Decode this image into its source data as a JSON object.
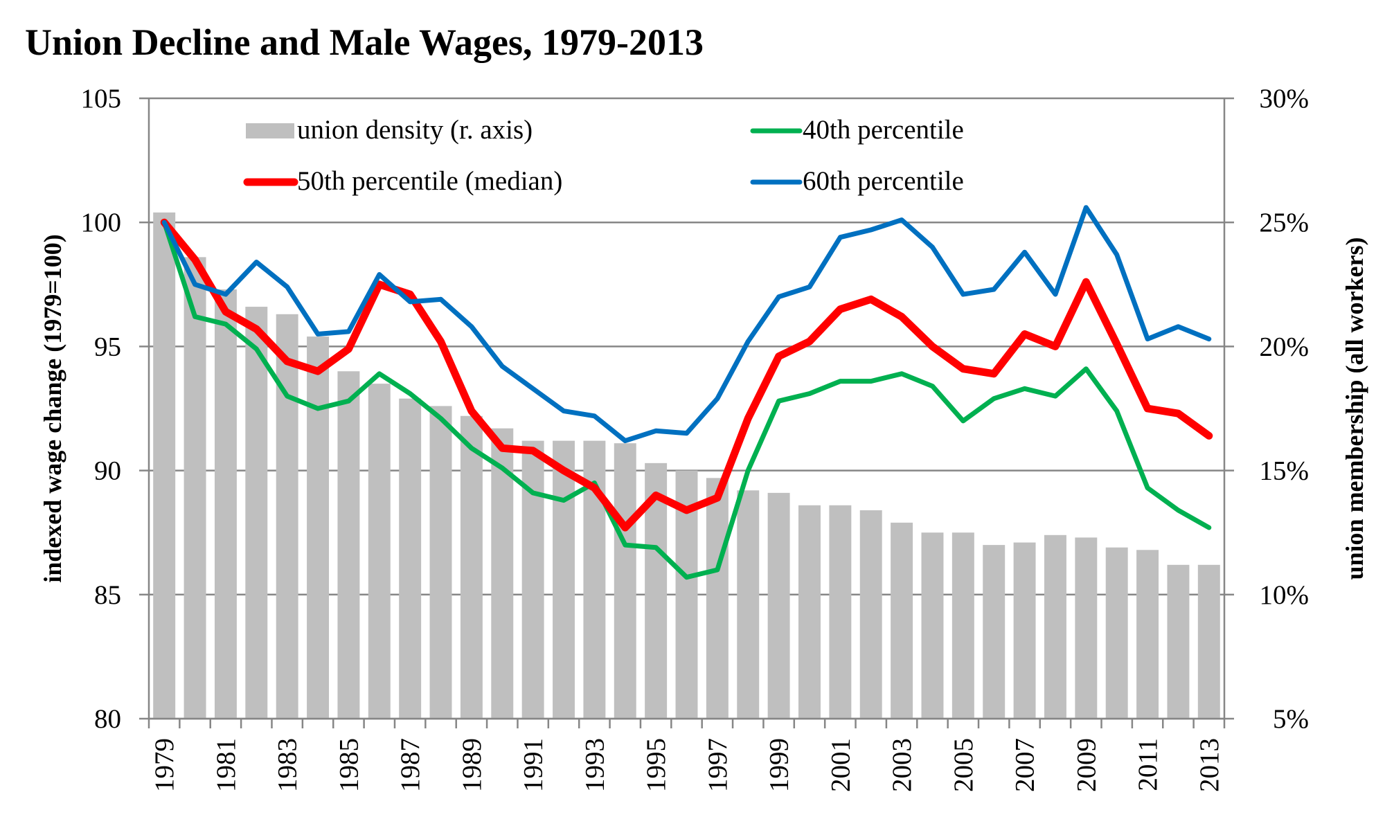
{
  "chart_data": {
    "type": "bar+line",
    "title": "Union Decline and Male Wages, 1979-2013",
    "xlabel": "",
    "ylabel": "indexed wage change (1979=100)",
    "y2label": "union membership (all workers)",
    "ylim": [
      80,
      105
    ],
    "y2lim": [
      5,
      30
    ],
    "yticks": [
      "80",
      "85",
      "90",
      "95",
      "100",
      "105"
    ],
    "y2ticks": [
      "5%",
      "10%",
      "15%",
      "20%",
      "25%",
      "30%"
    ],
    "grid": true,
    "legend_position": "top",
    "x": [
      1979,
      1980,
      1981,
      1982,
      1983,
      1984,
      1985,
      1986,
      1987,
      1988,
      1989,
      1990,
      1991,
      1992,
      1993,
      1994,
      1995,
      1996,
      1997,
      1998,
      1999,
      2000,
      2001,
      2002,
      2003,
      2004,
      2005,
      2006,
      2007,
      2008,
      2009,
      2010,
      2011,
      2012,
      2013
    ],
    "xtick_labels": [
      "1979",
      "1981",
      "1983",
      "1985",
      "1987",
      "1989",
      "1991",
      "1993",
      "1995",
      "1997",
      "1999",
      "2001",
      "2003",
      "2005",
      "2007",
      "2009",
      "2011",
      "2013"
    ],
    "series": [
      {
        "name": "union density (r. axis)",
        "type": "bar",
        "axis": "right",
        "color": "#bfbfbf",
        "values": [
          25.4,
          23.6,
          22.3,
          21.6,
          21.3,
          20.4,
          19.0,
          18.5,
          17.9,
          17.6,
          17.2,
          16.7,
          16.2,
          16.2,
          16.2,
          16.1,
          15.3,
          15.0,
          14.7,
          14.2,
          14.1,
          13.6,
          13.6,
          13.4,
          12.9,
          12.5,
          12.5,
          12.0,
          12.1,
          12.4,
          12.3,
          11.9,
          11.8,
          11.2,
          11.2
        ]
      },
      {
        "name": "40th percentile",
        "type": "line",
        "axis": "left",
        "color": "#00b050",
        "values": [
          100,
          96.2,
          95.9,
          94.9,
          93.0,
          92.5,
          92.8,
          93.9,
          93.1,
          92.1,
          90.9,
          90.1,
          89.1,
          88.8,
          89.5,
          87.0,
          86.9,
          85.7,
          86.0,
          90.0,
          92.8,
          93.1,
          93.6,
          93.6,
          93.9,
          93.4,
          92.0,
          92.9,
          93.3,
          93.0,
          94.1,
          92.4,
          89.3,
          88.4,
          87.7
        ]
      },
      {
        "name": "50th percentile (median)",
        "type": "line",
        "axis": "left",
        "color": "#ff0000",
        "values": [
          100,
          98.5,
          96.4,
          95.7,
          94.4,
          94.0,
          94.9,
          97.5,
          97.1,
          95.2,
          92.4,
          90.9,
          90.8,
          90.0,
          89.3,
          87.7,
          89.0,
          88.4,
          88.9,
          92.1,
          94.6,
          95.2,
          96.5,
          96.9,
          96.2,
          95.0,
          94.1,
          93.9,
          95.5,
          95.0,
          97.6,
          95.1,
          92.5,
          92.3,
          91.4
        ]
      },
      {
        "name": "60th percentile",
        "type": "line",
        "axis": "left",
        "color": "#0070c0",
        "values": [
          100,
          97.5,
          97.1,
          98.4,
          97.4,
          95.5,
          95.6,
          97.9,
          96.8,
          96.9,
          95.8,
          94.2,
          93.3,
          92.4,
          92.2,
          91.2,
          91.6,
          91.5,
          92.9,
          95.2,
          97.0,
          97.4,
          99.4,
          99.7,
          100.1,
          99.0,
          97.1,
          97.3,
          98.8,
          97.1,
          100.6,
          98.7,
          95.3,
          95.8,
          95.3
        ]
      }
    ],
    "legend": [
      {
        "label": "union density (r. axis)",
        "kind": "box",
        "color": "#bfbfbf"
      },
      {
        "label": "40th percentile",
        "kind": "line",
        "color": "#00b050"
      },
      {
        "label": "50th percentile (median)",
        "kind": "line",
        "color": "#ff0000"
      },
      {
        "label": "60th percentile",
        "kind": "line",
        "color": "#0070c0"
      }
    ]
  }
}
